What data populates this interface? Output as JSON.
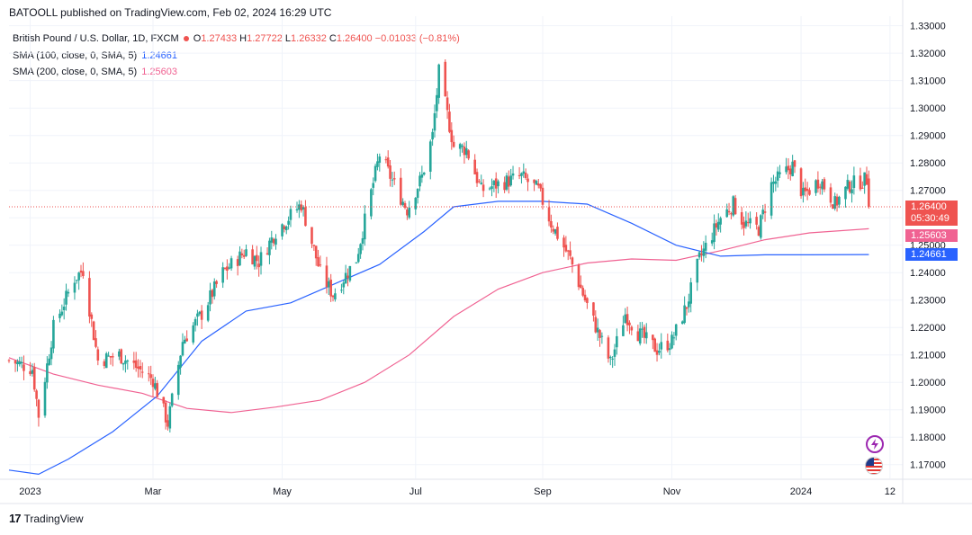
{
  "header": {
    "published": "BATOOLL published on TradingView.com, Feb 02, 2024 16:29 UTC"
  },
  "legend": {
    "symbol": "British Pound / U.S. Dollar, 1D, FXCM",
    "open_label": "O",
    "open": "1.27433",
    "high_label": "H",
    "high": "1.27722",
    "low_label": "L",
    "low": "1.26332",
    "close_label": "C",
    "close": "1.26400",
    "change": "−0.01033 (−0.81%)",
    "sma100_label": "SMA (100, close, 0, SMA, 5)",
    "sma100_value": "1.24661",
    "sma200_label": "SMA (200, close, 0, SMA, 5)",
    "sma200_value": "1.25603"
  },
  "price_tags": {
    "last_price": "1.26400",
    "countdown": "05:30:49",
    "sma200": "1.25603",
    "sma100": "1.24661"
  },
  "footer": {
    "brand": "TradingView",
    "logo_text": "17"
  },
  "icons": [
    "lightning-icon",
    "us-flag-icon"
  ],
  "colors": {
    "up": "#26a69a",
    "down": "#ef5350",
    "sma100": "#2962ff",
    "sma200": "#f06292",
    "last_price_line": "#ef5350",
    "axis_text": "#131722",
    "grid": "#f0f3fa"
  },
  "chart_data": {
    "type": "candlestick",
    "x_tick_labels": [
      "2023",
      "Mar",
      "May",
      "Jul",
      "Sep",
      "Nov",
      "2024",
      "12"
    ],
    "y_tick_labels": [
      "1.33000",
      "1.32000",
      "1.31000",
      "1.30000",
      "1.29000",
      "1.28000",
      "1.27000",
      "1.26000",
      "1.25000",
      "1.24000",
      "1.23000",
      "1.22000",
      "1.21000",
      "1.20000",
      "1.19000",
      "1.18000",
      "1.17000"
    ],
    "ylim": [
      1.165,
      1.3335
    ],
    "price_path": [
      [
        "2022-12-23",
        1.208
      ],
      [
        "2023-01-03",
        1.205
      ],
      [
        "2023-01-06",
        1.188
      ],
      [
        "2023-01-13",
        1.22
      ],
      [
        "2023-01-23",
        1.238
      ],
      [
        "2023-01-27",
        1.241
      ],
      [
        "2023-02-03",
        1.208
      ],
      [
        "2023-02-13",
        1.21
      ],
      [
        "2023-02-22",
        1.205
      ],
      [
        "2023-03-01",
        1.201
      ],
      [
        "2023-03-08",
        1.185
      ],
      [
        "2023-03-15",
        1.215
      ],
      [
        "2023-03-24",
        1.225
      ],
      [
        "2023-04-03",
        1.24
      ],
      [
        "2023-04-14",
        1.248
      ],
      [
        "2023-04-20",
        1.244
      ],
      [
        "2023-04-28",
        1.255
      ],
      [
        "2023-05-10",
        1.265
      ],
      [
        "2023-05-19",
        1.24
      ],
      [
        "2023-05-25",
        1.232
      ],
      [
        "2023-06-05",
        1.245
      ],
      [
        "2023-06-16",
        1.283
      ],
      [
        "2023-06-23",
        1.272
      ],
      [
        "2023-06-29",
        1.263
      ],
      [
        "2023-07-06",
        1.275
      ],
      [
        "2023-07-11",
        1.29
      ],
      [
        "2023-07-14",
        1.313
      ],
      [
        "2023-07-21",
        1.286
      ],
      [
        "2023-07-27",
        1.285
      ],
      [
        "2023-08-03",
        1.27
      ],
      [
        "2023-08-10",
        1.272
      ],
      [
        "2023-08-22",
        1.275
      ],
      [
        "2023-08-30",
        1.27
      ],
      [
        "2023-09-05",
        1.258
      ],
      [
        "2023-09-14",
        1.245
      ],
      [
        "2023-09-21",
        1.23
      ],
      [
        "2023-10-03",
        1.207
      ],
      [
        "2023-10-10",
        1.225
      ],
      [
        "2023-10-16",
        1.218
      ],
      [
        "2023-10-25",
        1.212
      ],
      [
        "2023-11-01",
        1.215
      ],
      [
        "2023-11-08",
        1.228
      ],
      [
        "2023-11-14",
        1.245
      ],
      [
        "2023-11-24",
        1.26
      ],
      [
        "2023-11-30",
        1.265
      ],
      [
        "2023-12-05",
        1.258
      ],
      [
        "2023-12-12",
        1.256
      ],
      [
        "2023-12-18",
        1.272
      ],
      [
        "2023-12-28",
        1.279
      ],
      [
        "2024-01-02",
        1.268
      ],
      [
        "2024-01-10",
        1.274
      ],
      [
        "2024-01-17",
        1.265
      ],
      [
        "2024-01-24",
        1.272
      ],
      [
        "2024-02-01",
        1.274
      ],
      [
        "2024-02-02",
        1.264
      ]
    ],
    "last_candle": {
      "date": "2024-02-02",
      "open": 1.27433,
      "high": 1.27722,
      "low": 1.26332,
      "close": 1.264
    },
    "sma100_path": [
      [
        "2022-12-23",
        1.168
      ],
      [
        "2023-01-06",
        1.1665
      ],
      [
        "2023-01-20",
        1.172
      ],
      [
        "2023-02-10",
        1.182
      ],
      [
        "2023-03-03",
        1.195
      ],
      [
        "2023-03-24",
        1.215
      ],
      [
        "2023-04-14",
        1.226
      ],
      [
        "2023-05-05",
        1.229
      ],
      [
        "2023-05-26",
        1.236
      ],
      [
        "2023-06-16",
        1.243
      ],
      [
        "2023-07-07",
        1.255
      ],
      [
        "2023-07-21",
        1.264
      ],
      [
        "2023-08-11",
        1.266
      ],
      [
        "2023-09-01",
        1.266
      ],
      [
        "2023-09-22",
        1.265
      ],
      [
        "2023-10-13",
        1.258
      ],
      [
        "2023-11-03",
        1.25
      ],
      [
        "2023-11-24",
        1.246
      ],
      [
        "2023-12-15",
        1.2465
      ],
      [
        "2024-01-05",
        1.2465
      ],
      [
        "2024-02-02",
        1.2466
      ]
    ],
    "sma200_path": [
      [
        "2022-12-23",
        1.209
      ],
      [
        "2023-01-13",
        1.203
      ],
      [
        "2023-02-03",
        1.199
      ],
      [
        "2023-02-24",
        1.196
      ],
      [
        "2023-03-17",
        1.1905
      ],
      [
        "2023-04-07",
        1.189
      ],
      [
        "2023-04-28",
        1.191
      ],
      [
        "2023-05-19",
        1.1935
      ],
      [
        "2023-06-09",
        1.2
      ],
      [
        "2023-06-30",
        1.21
      ],
      [
        "2023-07-21",
        1.224
      ],
      [
        "2023-08-11",
        1.234
      ],
      [
        "2023-09-01",
        1.24
      ],
      [
        "2023-09-22",
        1.2435
      ],
      [
        "2023-10-13",
        1.245
      ],
      [
        "2023-11-03",
        1.2445
      ],
      [
        "2023-11-24",
        1.248
      ],
      [
        "2023-12-15",
        1.252
      ],
      [
        "2024-01-05",
        1.2545
      ],
      [
        "2024-02-02",
        1.256
      ]
    ],
    "xlim": [
      "2022-12-23",
      "2024-02-18"
    ]
  }
}
